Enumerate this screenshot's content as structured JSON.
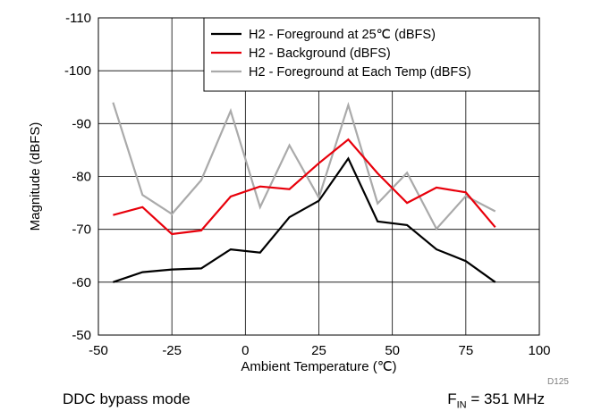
{
  "chart_data": {
    "type": "line",
    "xlabel": "Ambient Temperature (℃)",
    "ylabel": "Magnitude (dBFS)",
    "xlim": [
      -50,
      100
    ],
    "ylim": [
      -50,
      -110
    ],
    "y_axis_inverted": true,
    "xticks": [
      -50,
      -25,
      0,
      25,
      50,
      75,
      100
    ],
    "yticks": [
      -110,
      -100,
      -90,
      -80,
      -70,
      -60,
      -50
    ],
    "grid": true,
    "legend_position": "top-right",
    "x": [
      -45,
      -35,
      -25,
      -15,
      -5,
      5,
      15,
      25,
      35,
      45,
      55,
      65,
      75,
      85
    ],
    "series": [
      {
        "name": "H2 - Foreground at 25℃ (dBFS)",
        "color": "#000000",
        "values": [
          -60.0,
          -61.9,
          -62.4,
          -62.6,
          -66.2,
          -65.6,
          -72.3,
          -75.4,
          -83.4,
          -71.5,
          -70.8,
          -66.2,
          -64.0,
          -60.0
        ]
      },
      {
        "name": "H2 - Background (dBFS)",
        "color": "#e8000b",
        "values": [
          -72.7,
          -74.2,
          -69.1,
          -69.8,
          -76.2,
          -78.1,
          -77.6,
          -82.5,
          -87.0,
          -80.6,
          -75.0,
          -77.9,
          -77.0,
          -70.4
        ]
      },
      {
        "name": "H2 - Foreground at Each Temp (dBFS)",
        "color": "#aaaaaa",
        "values": [
          -94.0,
          -76.5,
          -72.9,
          -79.3,
          -92.4,
          -74.2,
          -85.9,
          -76.0,
          -93.5,
          -74.9,
          -80.7,
          -70.1,
          -76.3,
          -73.4
        ]
      }
    ],
    "figure_id": "D125"
  },
  "captions": {
    "left": "DDC bypass mode",
    "right_prefix": "F",
    "right_sub": "IN",
    "right_suffix": " = 351 MHz"
  }
}
